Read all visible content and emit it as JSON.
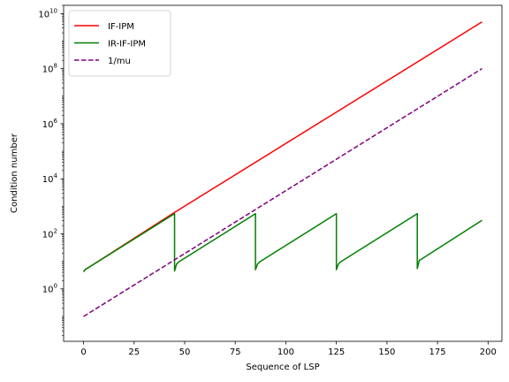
{
  "chart_data": {
    "type": "line",
    "xlabel": "Sequence of LSP",
    "ylabel": "Condition number",
    "xlim": [
      -9.85,
      206.85
    ],
    "ylim": [
      0.0125,
      20000000000
    ],
    "y_scale": "log",
    "grid": false,
    "legend_position": "top-left",
    "x_ticks": [
      0,
      25,
      50,
      75,
      100,
      125,
      150,
      175,
      200
    ],
    "y_ticks": [
      1,
      100,
      10000,
      1000000,
      100000000,
      10000000000
    ],
    "y_tick_labels": [
      {
        "base": "10",
        "exp": "0"
      },
      {
        "base": "10",
        "exp": "2"
      },
      {
        "base": "10",
        "exp": "4"
      },
      {
        "base": "10",
        "exp": "6"
      },
      {
        "base": "10",
        "exp": "8"
      },
      {
        "base": "10",
        "exp": "10"
      }
    ],
    "series": [
      {
        "name": "IF-IPM",
        "color": "#ff0000",
        "dash": "solid",
        "points": [
          [
            0,
            4.2
          ],
          [
            1,
            5.2
          ],
          [
            2,
            5.7
          ],
          [
            44,
            540
          ],
          [
            197,
            5000000000
          ]
        ]
      },
      {
        "name": "IR-IF-IPM",
        "color": "#008000",
        "dash": "solid",
        "points": [
          [
            0,
            4.2
          ],
          [
            1,
            5.2
          ],
          [
            2,
            5.7
          ],
          [
            45,
            540
          ],
          [
            45,
            4.5
          ],
          [
            46,
            8
          ],
          [
            47,
            9.5
          ],
          [
            85,
            540
          ],
          [
            85,
            5
          ],
          [
            86,
            8
          ],
          [
            87,
            9.5
          ],
          [
            125,
            540
          ],
          [
            125,
            5
          ],
          [
            126,
            8
          ],
          [
            127,
            9.5
          ],
          [
            165,
            540
          ],
          [
            165,
            5.5
          ],
          [
            166,
            11
          ],
          [
            167,
            12
          ],
          [
            197,
            310
          ]
        ]
      },
      {
        "name": "1/mu",
        "color": "#800080",
        "dash": "dashed",
        "points": [
          [
            0,
            0.1
          ],
          [
            197,
            100000000
          ]
        ]
      }
    ]
  }
}
